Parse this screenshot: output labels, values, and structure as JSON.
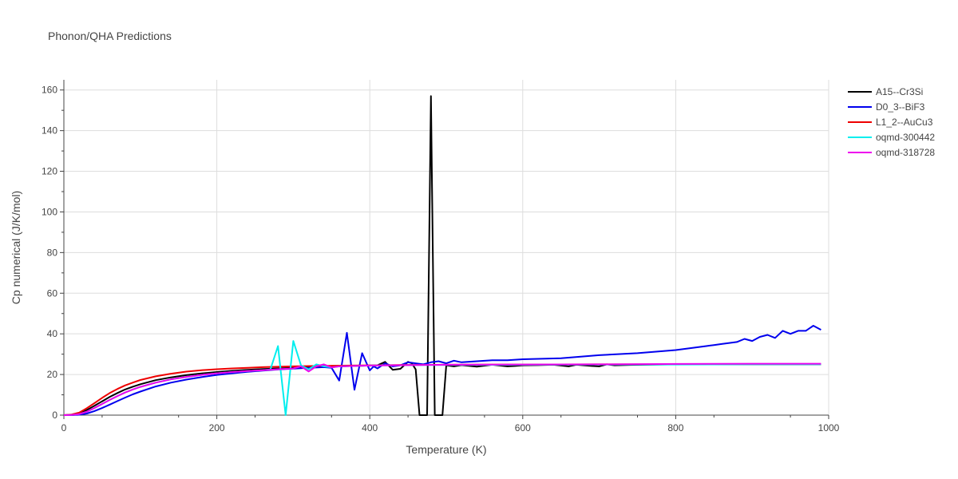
{
  "chart_data": {
    "type": "line",
    "title": "Phonon/QHA Predictions",
    "xlabel": "Temperature (K)",
    "ylabel": "Cp numerical (J/K/mol)",
    "xlim": [
      0,
      1000
    ],
    "ylim": [
      0,
      165
    ],
    "xticks": [
      0,
      200,
      400,
      600,
      800,
      1000
    ],
    "yticks": [
      0,
      20,
      40,
      60,
      80,
      100,
      120,
      140,
      160
    ],
    "grid": true,
    "legend_position": "top-right",
    "series": [
      {
        "name": "A15--Cr3Si",
        "color": "#000000",
        "x": [
          0,
          10,
          20,
          30,
          40,
          50,
          60,
          70,
          80,
          90,
          100,
          120,
          140,
          160,
          180,
          200,
          220,
          240,
          260,
          280,
          300,
          320,
          340,
          360,
          380,
          400,
          410,
          420,
          430,
          440,
          450,
          455,
          460,
          465,
          470,
          475,
          480,
          485,
          490,
          495,
          500,
          510,
          520,
          540,
          560,
          580,
          590,
          600,
          620,
          640,
          660,
          670,
          680,
          690,
          700,
          710,
          720,
          740,
          760,
          780,
          800,
          850,
          900,
          950,
          990
        ],
        "y": [
          0,
          0.2,
          0.8,
          2.5,
          4.6,
          6.8,
          9.0,
          10.9,
          12.6,
          14.0,
          15.2,
          17.2,
          18.6,
          19.7,
          20.5,
          21.2,
          21.8,
          22.3,
          22.7,
          23.0,
          23.3,
          23.6,
          23.8,
          24.0,
          24.2,
          24.4,
          24.5,
          26.2,
          22.3,
          22.8,
          26.2,
          25.5,
          22.5,
          0,
          0,
          0,
          157,
          0,
          0,
          0,
          24.5,
          24.0,
          24.6,
          23.9,
          24.8,
          24.0,
          24.2,
          24.5,
          24.6,
          24.8,
          24.0,
          24.8,
          24.5,
          24.2,
          24.0,
          25.0,
          24.5,
          24.7,
          24.8,
          24.9,
          25.0,
          25.0,
          25.0,
          25.0,
          25.0
        ]
      },
      {
        "name": "D0_3--BiF3",
        "color": "#0000ee",
        "x": [
          0,
          10,
          20,
          30,
          40,
          50,
          60,
          70,
          80,
          90,
          100,
          120,
          140,
          160,
          180,
          200,
          220,
          240,
          260,
          280,
          300,
          320,
          340,
          350,
          360,
          370,
          380,
          390,
          400,
          405,
          410,
          420,
          430,
          440,
          450,
          460,
          470,
          480,
          490,
          500,
          510,
          520,
          540,
          560,
          580,
          600,
          650,
          700,
          750,
          800,
          810,
          820,
          830,
          840,
          850,
          860,
          870,
          880,
          890,
          900,
          910,
          920,
          930,
          940,
          950,
          960,
          970,
          980,
          990
        ],
        "y": [
          0,
          0,
          0.2,
          0.8,
          2.0,
          3.5,
          5.2,
          6.9,
          8.6,
          10.2,
          11.6,
          14.1,
          16.0,
          17.5,
          18.7,
          19.8,
          20.6,
          21.3,
          21.9,
          22.5,
          22.9,
          23.3,
          23.6,
          23.3,
          17.0,
          40.5,
          12.5,
          30.5,
          22.0,
          24.0,
          23.0,
          25.5,
          24.0,
          24.5,
          26.0,
          25.5,
          25.0,
          26.0,
          26.5,
          25.5,
          26.8,
          26.0,
          26.5,
          27.0,
          27.0,
          27.5,
          28.0,
          29.5,
          30.5,
          32.0,
          32.5,
          33.0,
          33.5,
          34.0,
          34.5,
          35.0,
          35.5,
          36.0,
          37.5,
          36.5,
          38.5,
          39.5,
          38.0,
          41.5,
          40.0,
          41.5,
          41.5,
          44.0,
          42.0
        ]
      },
      {
        "name": "L1_2--AuCu3",
        "color": "#ee0000",
        "x": [
          0,
          10,
          20,
          30,
          40,
          50,
          60,
          70,
          80,
          90,
          100,
          120,
          140,
          160,
          180,
          200,
          220,
          240,
          260,
          280,
          300,
          350,
          400,
          450,
          500,
          600,
          700,
          800,
          900,
          990
        ],
        "y": [
          0,
          0.3,
          1.2,
          3.4,
          5.9,
          8.5,
          10.9,
          12.9,
          14.6,
          16.0,
          17.3,
          19.1,
          20.4,
          21.4,
          22.1,
          22.6,
          23.0,
          23.3,
          23.6,
          23.8,
          24.0,
          24.3,
          24.5,
          24.7,
          24.8,
          24.9,
          25.0,
          25.0,
          25.0,
          25.0
        ]
      },
      {
        "name": "oqmd-300442",
        "color": "#00eeee",
        "x": [
          0,
          10,
          20,
          30,
          40,
          50,
          60,
          70,
          80,
          90,
          100,
          120,
          140,
          160,
          180,
          200,
          220,
          240,
          260,
          270,
          280,
          290,
          300,
          310,
          320,
          330,
          340,
          350,
          360,
          380,
          400,
          450,
          500,
          600,
          700,
          800,
          900,
          990
        ],
        "y": [
          0,
          0.1,
          0.5,
          1.7,
          3.5,
          5.5,
          7.5,
          9.4,
          11.1,
          12.6,
          13.9,
          16.0,
          17.6,
          18.8,
          19.8,
          20.6,
          21.2,
          21.7,
          22.1,
          22.5,
          34.0,
          0,
          36.5,
          24.5,
          22.5,
          25.0,
          24.0,
          23.5,
          24.0,
          24.2,
          24.4,
          24.6,
          24.7,
          24.8,
          24.9,
          24.9,
          25.0,
          25.0
        ]
      },
      {
        "name": "oqmd-318728",
        "color": "#ee00ee",
        "x": [
          0,
          10,
          20,
          30,
          40,
          50,
          60,
          70,
          80,
          90,
          100,
          120,
          140,
          160,
          180,
          200,
          220,
          240,
          260,
          280,
          300,
          310,
          320,
          330,
          340,
          350,
          360,
          380,
          400,
          450,
          500,
          600,
          700,
          800,
          900,
          990
        ],
        "y": [
          0,
          0.1,
          0.5,
          1.7,
          3.5,
          5.5,
          7.5,
          9.4,
          11.1,
          12.6,
          13.9,
          16.0,
          17.6,
          18.8,
          19.8,
          20.6,
          21.2,
          21.7,
          22.1,
          22.6,
          23.0,
          24.0,
          21.5,
          24.0,
          25.0,
          23.5,
          24.0,
          24.2,
          24.4,
          24.6,
          24.8,
          24.9,
          25.0,
          25.2,
          25.3,
          25.3
        ]
      }
    ]
  }
}
